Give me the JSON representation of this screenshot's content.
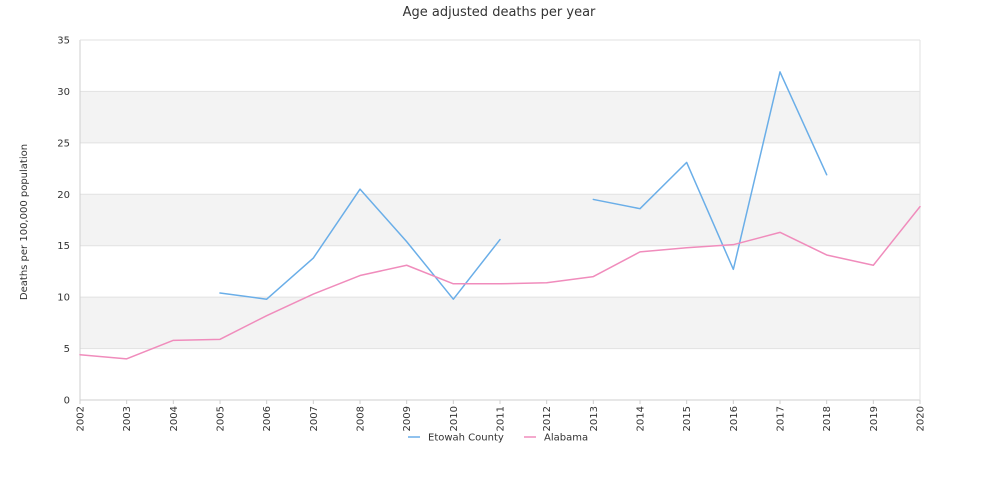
{
  "chart_data": {
    "type": "line",
    "title": "Age adjusted deaths per year",
    "xlabel": "",
    "ylabel": "Deaths per 100,000 population",
    "x": [
      "2002",
      "2003",
      "2004",
      "2005",
      "2006",
      "2007",
      "2008",
      "2009",
      "2010",
      "2011",
      "2012",
      "2013",
      "2014",
      "2015",
      "2016",
      "2017",
      "2018",
      "2019",
      "2020"
    ],
    "ylim": [
      0,
      35
    ],
    "yticks": [
      0,
      5,
      10,
      15,
      20,
      25,
      30,
      35
    ],
    "grid": true,
    "legend_position": "bottom",
    "series": [
      {
        "name": "Etowah County",
        "color": "#6aaee8",
        "values": [
          null,
          null,
          null,
          10.4,
          9.8,
          13.8,
          20.5,
          15.4,
          9.8,
          15.6,
          null,
          19.5,
          18.6,
          23.1,
          12.7,
          31.9,
          21.9,
          null,
          null
        ]
      },
      {
        "name": "Alabama",
        "color": "#f08cbc",
        "values": [
          4.4,
          4.0,
          5.8,
          5.9,
          8.2,
          10.3,
          12.1,
          13.1,
          11.3,
          11.3,
          11.4,
          12.0,
          14.4,
          14.8,
          15.1,
          16.3,
          14.1,
          13.1,
          18.8
        ]
      }
    ]
  }
}
